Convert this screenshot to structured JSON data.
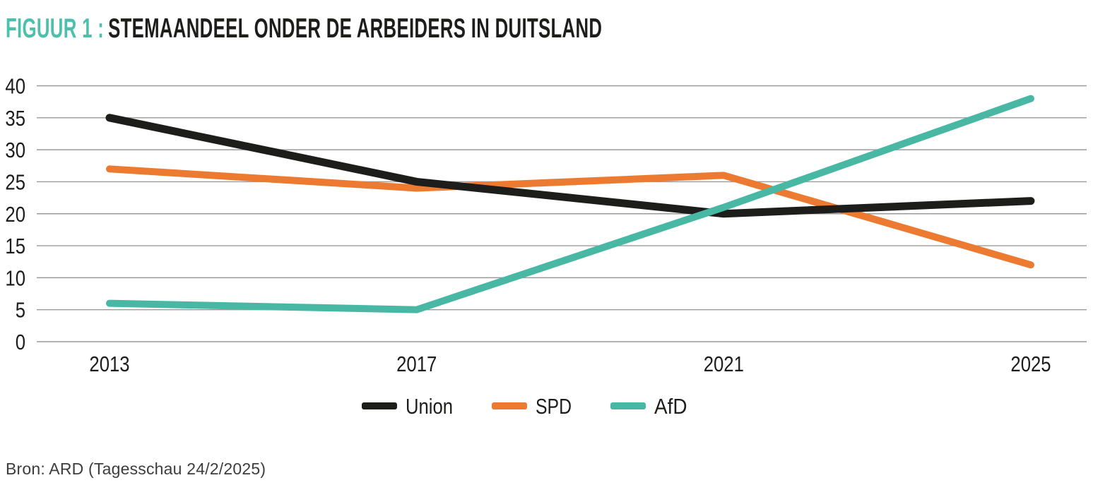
{
  "title": {
    "prefix": "FIGUUR 1 :",
    "text": "STEMAANDEEL ONDER DE ARBEIDERS IN DUITSLAND"
  },
  "source": "Bron: ARD (Tagesschau 24/2/2025)",
  "colors": {
    "title_accent": "#4cc0ad",
    "text": "#1d1d1b",
    "gridline": "#9a9a9a",
    "source_text": "#3d3d3c",
    "union": "#1d1d1b",
    "spd": "#ec7a31",
    "afd": "#48b8a4"
  },
  "chart_data": {
    "type": "line",
    "title": "STEMAANDEEL ONDER DE ARBEIDERS IN DUITSLAND",
    "x": [
      2013,
      2017,
      2021,
      2025
    ],
    "xlabel": "",
    "ylabel": "",
    "ylim": [
      0,
      40
    ],
    "yticks": [
      0,
      5,
      10,
      15,
      20,
      25,
      30,
      35,
      40
    ],
    "grid": "horizontal",
    "legend_position": "bottom",
    "series": [
      {
        "name": "Union",
        "color": "#1d1d1b",
        "line_width": 11,
        "values": [
          35,
          25,
          20,
          22
        ]
      },
      {
        "name": "SPD",
        "color": "#ec7a31",
        "line_width": 10,
        "values": [
          27,
          24,
          26,
          12
        ]
      },
      {
        "name": "AfD",
        "color": "#48b8a4",
        "line_width": 10,
        "values": [
          6,
          5,
          21,
          38
        ]
      }
    ],
    "draw_order": [
      "SPD",
      "Union",
      "AfD"
    ]
  }
}
